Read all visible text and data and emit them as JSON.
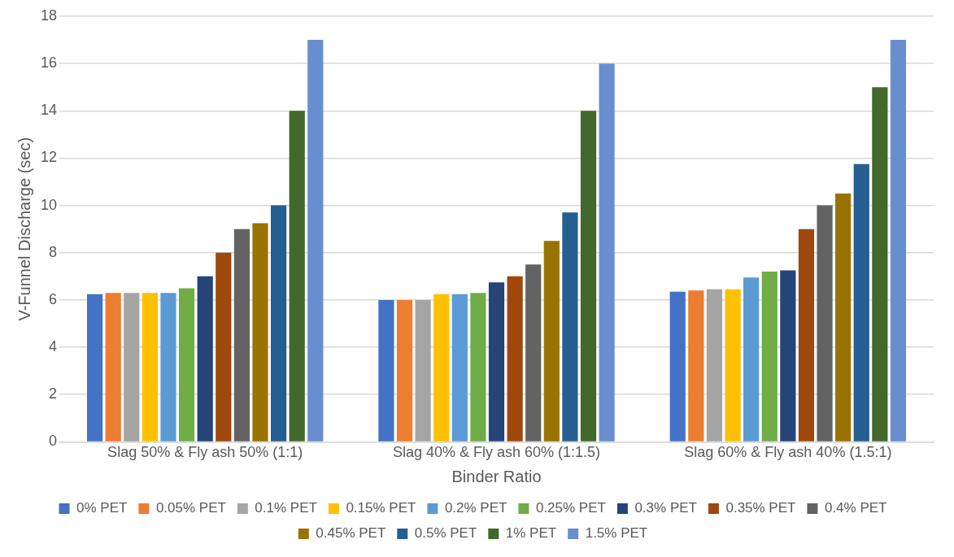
{
  "chart_data": {
    "type": "bar",
    "xlabel": "Binder Ratio",
    "ylabel": "V-Funnel Discharge (sec)",
    "categories": [
      "Slag 50% & Fly ash 50% (1:1)",
      "Slag 40% & Fly ash 60% (1:1.5)",
      "Slag 60% & Fly ash 40% (1.5:1)"
    ],
    "series": [
      {
        "name": "0% PET",
        "color": "#4472c4",
        "values": [
          6.25,
          6,
          6.35
        ]
      },
      {
        "name": "0.05% PET",
        "color": "#ed7d31",
        "values": [
          6.3,
          6,
          6.4
        ]
      },
      {
        "name": "0.1% PET",
        "color": "#a5a5a5",
        "values": [
          6.3,
          6,
          6.45
        ]
      },
      {
        "name": "0.15% PET",
        "color": "#ffc000",
        "values": [
          6.3,
          6.25,
          6.45
        ]
      },
      {
        "name": "0.2% PET",
        "color": "#5b9bd5",
        "values": [
          6.3,
          6.25,
          6.95
        ]
      },
      {
        "name": "0.25% PET",
        "color": "#70ad47",
        "values": [
          6.5,
          6.3,
          7.2
        ]
      },
      {
        "name": "0.3% PET",
        "color": "#264478",
        "values": [
          7,
          6.75,
          7.25
        ]
      },
      {
        "name": "0.35% PET",
        "color": "#9e480e",
        "values": [
          8,
          7,
          9
        ]
      },
      {
        "name": "0.4% PET",
        "color": "#636363",
        "values": [
          9,
          7.5,
          10
        ]
      },
      {
        "name": "0.45% PET",
        "color": "#997300",
        "values": [
          9.25,
          8.5,
          10.5
        ]
      },
      {
        "name": "0.5% PET",
        "color": "#255e91",
        "values": [
          10,
          9.7,
          11.75
        ]
      },
      {
        "name": "1% PET",
        "color": "#43682b",
        "values": [
          14,
          14,
          15
        ]
      },
      {
        "name": "1.5% PET",
        "color": "#698ed0",
        "values": [
          17,
          16,
          17
        ]
      }
    ],
    "ylim": [
      0,
      18
    ],
    "yticks": [
      0,
      2,
      4,
      6,
      8,
      10,
      12,
      14,
      16,
      18
    ],
    "grid": "y",
    "legend": "bottom"
  }
}
